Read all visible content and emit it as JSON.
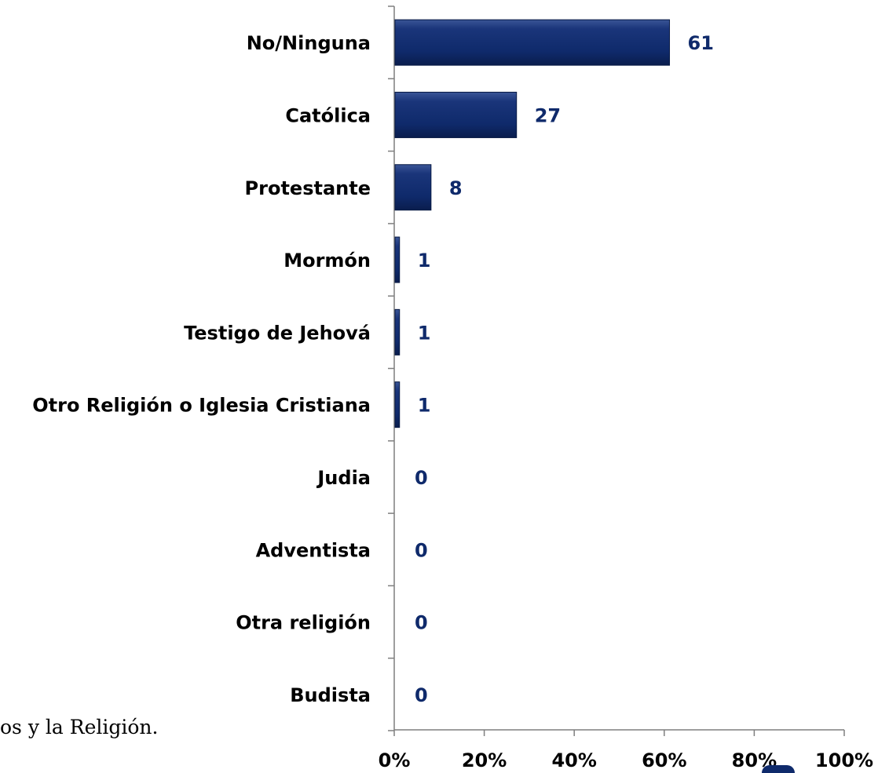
{
  "caption": "os y la Religión.",
  "colors": {
    "bar": "#0f2a6b",
    "value_label": "#0f2a6b",
    "axis": "#7f7f7f"
  },
  "chart_data": {
    "type": "bar",
    "orientation": "horizontal",
    "categories": [
      "No/Ninguna",
      "Católica",
      "Protestante",
      "Mormón",
      "Testigo de Jehová",
      "Otro Religión o Iglesia Cristiana",
      "Judia",
      "Adventista",
      "Otra religión",
      "Budista"
    ],
    "values": [
      61,
      27,
      8,
      1,
      1,
      1,
      0,
      0,
      0,
      0
    ],
    "value_labels": [
      "61",
      "27",
      "8",
      "1",
      "1",
      "1",
      "0",
      "0",
      "0",
      "0"
    ],
    "xlim": [
      0,
      100
    ],
    "xticks": [
      "0%",
      "20%",
      "40%",
      "60%",
      "80%",
      "100%"
    ],
    "grid": false,
    "legend": "none"
  }
}
